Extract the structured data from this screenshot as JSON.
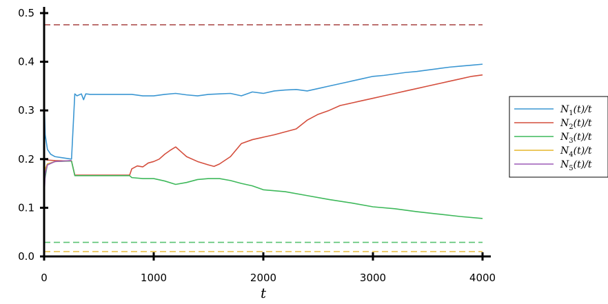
{
  "chart_data": {
    "type": "line",
    "title": "",
    "xlabel": "t",
    "ylabel": "",
    "xlim": [
      0,
      4000
    ],
    "ylim": [
      0,
      0.5
    ],
    "x_ticks": [
      "0",
      "1000",
      "2000",
      "3000",
      "4000"
    ],
    "y_ticks": [
      "0.0",
      "0.1",
      "0.2",
      "0.3",
      "0.4",
      "0.5"
    ],
    "grid": false,
    "legend_position": "right",
    "series": [
      {
        "name": "N_1(t)/t",
        "color": "#3a96d2",
        "x": [
          0,
          10,
          30,
          60,
          100,
          160,
          250,
          280,
          300,
          340,
          360,
          380,
          420,
          500,
          600,
          700,
          800,
          900,
          1000,
          1100,
          1200,
          1300,
          1400,
          1500,
          1600,
          1700,
          1800,
          1900,
          2000,
          2100,
          2200,
          2300,
          2400,
          2500,
          2600,
          2700,
          2800,
          2900,
          3000,
          3100,
          3200,
          3300,
          3400,
          3500,
          3600,
          3700,
          3800,
          3900,
          4000
        ],
        "y": [
          0.33,
          0.25,
          0.22,
          0.21,
          0.205,
          0.203,
          0.2,
          0.334,
          0.33,
          0.334,
          0.322,
          0.334,
          0.333,
          0.333,
          0.333,
          0.333,
          0.333,
          0.33,
          0.33,
          0.333,
          0.335,
          0.332,
          0.33,
          0.333,
          0.334,
          0.335,
          0.33,
          0.338,
          0.335,
          0.34,
          0.342,
          0.343,
          0.34,
          0.345,
          0.35,
          0.355,
          0.36,
          0.365,
          0.37,
          0.372,
          0.375,
          0.378,
          0.38,
          0.383,
          0.386,
          0.389,
          0.391,
          0.393,
          0.395
        ]
      },
      {
        "name": "N_2(t)/t",
        "color": "#d44d3c",
        "x": [
          0,
          30,
          100,
          250,
          280,
          400,
          600,
          780,
          800,
          850,
          900,
          950,
          1000,
          1050,
          1100,
          1150,
          1200,
          1250,
          1300,
          1400,
          1500,
          1550,
          1600,
          1700,
          1800,
          1900,
          2000,
          2100,
          2200,
          2300,
          2400,
          2500,
          2600,
          2700,
          2800,
          2900,
          3000,
          3100,
          3200,
          3300,
          3400,
          3500,
          3600,
          3700,
          3800,
          3900,
          4000
        ],
        "y": [
          0.2,
          0.198,
          0.197,
          0.196,
          0.167,
          0.167,
          0.167,
          0.167,
          0.18,
          0.186,
          0.184,
          0.192,
          0.195,
          0.2,
          0.21,
          0.218,
          0.225,
          0.215,
          0.205,
          0.195,
          0.188,
          0.185,
          0.19,
          0.205,
          0.232,
          0.24,
          0.245,
          0.25,
          0.256,
          0.262,
          0.28,
          0.292,
          0.3,
          0.31,
          0.315,
          0.32,
          0.325,
          0.33,
          0.335,
          0.34,
          0.345,
          0.35,
          0.355,
          0.36,
          0.365,
          0.37,
          0.373
        ]
      },
      {
        "name": "N_3(t)/t",
        "color": "#3db85a",
        "x": [
          0,
          30,
          100,
          250,
          280,
          500,
          780,
          800,
          900,
          1000,
          1100,
          1200,
          1300,
          1400,
          1500,
          1600,
          1700,
          1800,
          1900,
          2000,
          2200,
          2400,
          2600,
          2800,
          3000,
          3200,
          3400,
          3600,
          3800,
          4000
        ],
        "y": [
          0.15,
          0.19,
          0.195,
          0.196,
          0.166,
          0.166,
          0.166,
          0.162,
          0.16,
          0.16,
          0.155,
          0.148,
          0.152,
          0.158,
          0.16,
          0.16,
          0.156,
          0.15,
          0.145,
          0.137,
          0.133,
          0.125,
          0.117,
          0.11,
          0.102,
          0.098,
          0.092,
          0.087,
          0.082,
          0.078
        ]
      },
      {
        "name": "N_4(t)/t",
        "color": "#e6b62a",
        "x": [
          0,
          10,
          30,
          100,
          250
        ],
        "y": [
          0.14,
          0.18,
          0.19,
          0.195,
          0.197
        ]
      },
      {
        "name": "N_5(t)/t",
        "color": "#9b59b6",
        "x": [
          0,
          10,
          30,
          100,
          250
        ],
        "y": [
          0.12,
          0.17,
          0.188,
          0.195,
          0.197
        ]
      }
    ],
    "reference_lines": [
      {
        "y": 0.476,
        "color": "#3a96d2",
        "style": "dashed"
      },
      {
        "y": 0.476,
        "color": "#d44d3c",
        "style": "dashed"
      },
      {
        "y": 0.029,
        "color": "#3db85a",
        "style": "dashed"
      },
      {
        "y": 0.01,
        "color": "#e6b62a",
        "style": "dashed"
      }
    ]
  }
}
